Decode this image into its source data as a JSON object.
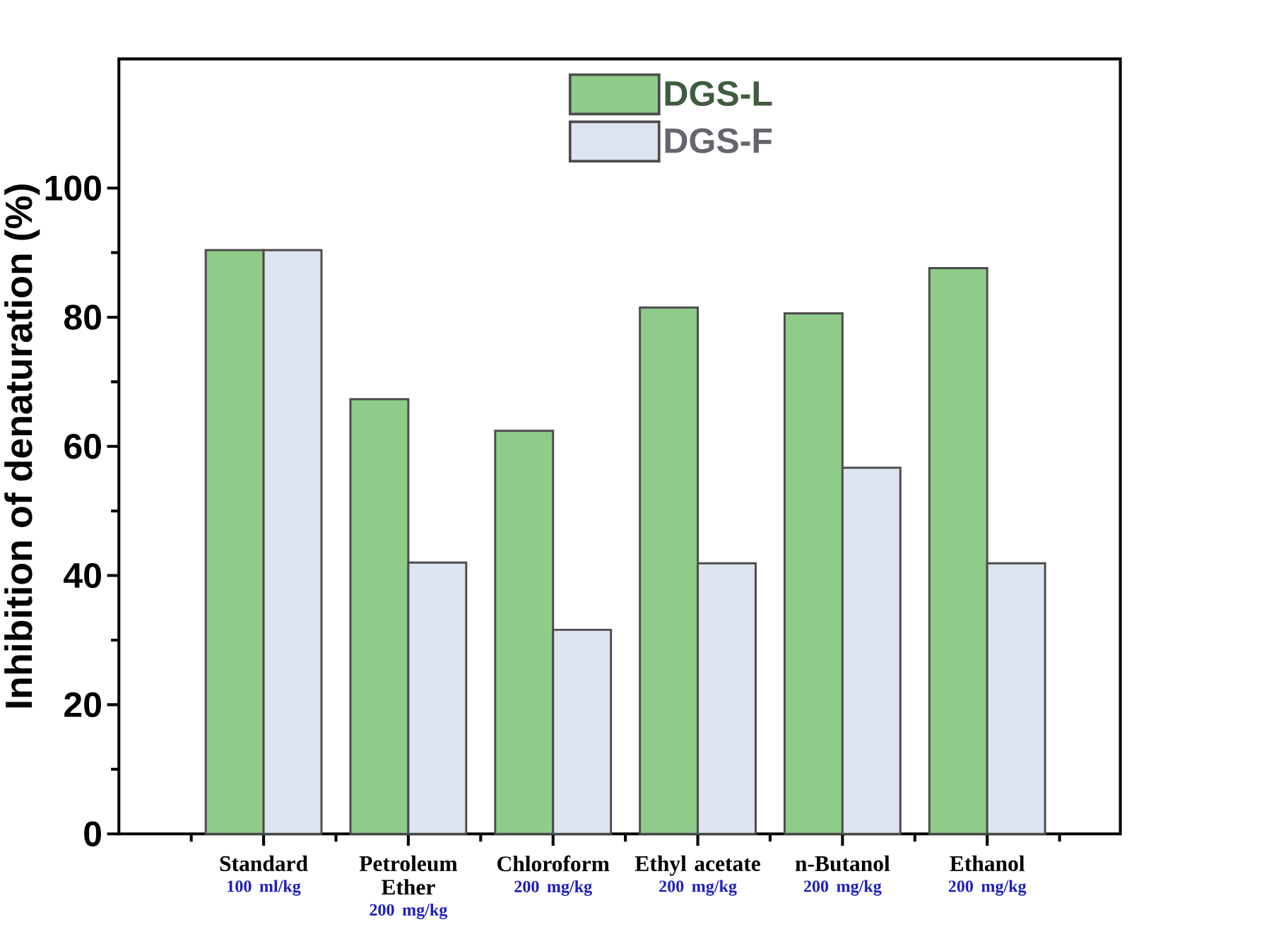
{
  "chart_data": {
    "type": "bar",
    "ylabel": "Inhibition of denaturation (%)",
    "categories": [
      "Standard",
      "Petroleum Ether",
      "Chloroform",
      "Ethyl acetate",
      "n-Butanol",
      "Ethanol"
    ],
    "annotations": [
      "100 ml/kg",
      "200 mg/kg",
      "200 mg/kg",
      "200 mg/kg",
      "200 mg/kg",
      "200 mg/kg"
    ],
    "series": [
      {
        "name": "DGS-L",
        "color": "#8fcc8a",
        "values": [
          90.4,
          67.3,
          62.4,
          81.5,
          80.6,
          87.6
        ]
      },
      {
        "name": "DGS-F",
        "color": "#dde3f0",
        "values": [
          90.4,
          42.0,
          31.6,
          41.9,
          56.7,
          41.9
        ]
      }
    ],
    "ylim": [
      0,
      120
    ],
    "yticks": [
      0,
      20,
      40,
      60,
      80,
      100
    ],
    "grid": false,
    "legend": "top"
  }
}
